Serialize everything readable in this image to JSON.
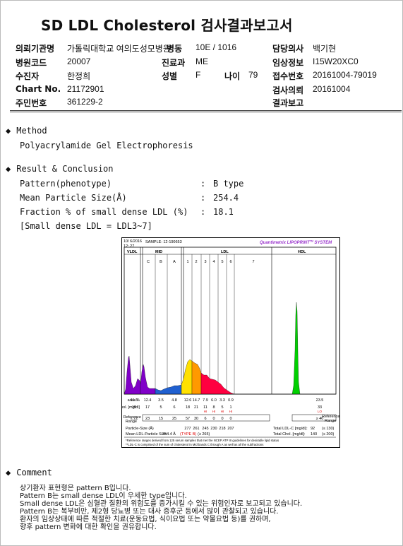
{
  "title": "SD LDL Cholesterol 검사결과보고서",
  "header": {
    "institution_label": "의뢰기관명",
    "institution": "가톨릭대학교 여의도성모병원",
    "ward_label": "병동",
    "ward": "10E / 1016",
    "doctor_label": "담당의사",
    "doctor": "백기현",
    "hospital_code_label": "병원코드",
    "hospital_code": "20007",
    "department_label": "진료과",
    "department": "ME",
    "clinical_label": "임상정보",
    "clinical": "I15W20XC0",
    "patient_label": "수진자",
    "patient": "한정희",
    "sex_label": "성별",
    "sex": "F",
    "age_label": "나이",
    "age": "79",
    "receipt_label": "접수번호",
    "receipt": "20161004-79019",
    "chart_label": "Chart No.",
    "chart_no": "21172901",
    "request_label": "검사의뢰",
    "request_date": "20161004",
    "rrn_label": "주민번호",
    "rrn": "361229-2",
    "report_label": "결과보고",
    "report_date": ""
  },
  "method": {
    "heading": "Method",
    "text": "Polyacrylamide Gel Electrophoresis"
  },
  "result": {
    "heading": "Result & Conclusion",
    "rows": [
      {
        "label": "Pattern(phenotype)",
        "colon": ":",
        "value": "B type"
      },
      {
        "label": "Mean Particle Size(Å)",
        "colon": ":",
        "value": "254.4"
      },
      {
        "label": "Fraction % of small dense LDL (%)",
        "colon": ":",
        "value": "18.1"
      }
    ],
    "note": "[Small dense LDL = LDL3~7]"
  },
  "chart_data": {
    "type": "area",
    "date": "10/ 6/2016",
    "time": "12: 27",
    "sample": "SAMPLE: 12-190653",
    "brand": "Quantimetrix LIPOPRINT",
    "brand_tm": "TM",
    "brand_suffix": " SYSTEM",
    "groups": [
      "VLDL",
      "MID",
      "LDL",
      "HDL"
    ],
    "mid_bands": [
      "C",
      "B",
      "A"
    ],
    "ldl_bands": [
      "1",
      "2",
      "3",
      "4",
      "5",
      "6",
      "7"
    ],
    "bands": [
      "VLDL",
      "C",
      "B",
      "A",
      "1",
      "2",
      "3",
      "4",
      "5",
      "6",
      "7",
      "HDL"
    ],
    "area_label": "area %",
    "area": [
      "11.0",
      "12.4",
      "3.5",
      "4.8",
      "12.6",
      "14.7",
      "7.9",
      "6.0",
      "3.3",
      "0.9",
      "",
      "23.5"
    ],
    "chol_label": "chol. [mg/dl]",
    "chol": [
      "15",
      "17",
      "5",
      "6",
      "18",
      "21",
      "11",
      "8",
      "5",
      "1",
      "",
      "33"
    ],
    "chol_flags": [
      "",
      "",
      "",
      "",
      "",
      "",
      "HI",
      "HI",
      "HI",
      "HI",
      "",
      "LO"
    ],
    "ref_label": "Reference Range",
    "ref_range": [
      "≤ 22",
      "23",
      "15",
      "25",
      "57",
      "30",
      "6",
      "0",
      "0",
      "0",
      "",
      "≥ 40"
    ],
    "particle_label": "Particle-Size (Å)",
    "particle_sizes": [
      "277",
      "261",
      "245",
      "230",
      "218",
      "207"
    ],
    "mean_label": "Mean LDL-Particle Size:",
    "mean_value": "254.4 Å",
    "mean_type": "(TYPE B)",
    "mean_ref": "(≥ 265)",
    "total_ldl_label": "Total LDL-C [mg/dl]:",
    "total_ldl": "92",
    "total_ldl_ref": "(≤ 130)",
    "total_chol_label": "Total Chol. [mg/dl]:",
    "total_chol": "140",
    "total_chol_ref": "(≤ 200)",
    "footnote1": "*Reference ranges derived from 125 serum samples that met the NCEP ATP III guidelines for desirable lipid status",
    "footnote2": "**LDL-C is comprised of the sum of cholesterol in Mid bands C through A as well as all the subfractions",
    "colors": {
      "vldl": "#8000c8",
      "mid": "#2060d0",
      "ldl1": "#ffe000",
      "ldl2": "#ff9900",
      "ldl3plus": "#ff0040",
      "hdl": "#00d000",
      "red_text": "#e00000",
      "brand": "#9933cc"
    }
  },
  "comment": {
    "heading": "Comment",
    "lines": [
      "상기환자 표현형은 pattern B입니다.",
      "Pattern B는 small dense LDL이 우세한 type입니다.",
      "Small dense LDL은 심혈관 질환의 위험도를 증가시킬 수 있는 위험인자로 보고되고 있습니다.",
      "Pattern B는 복부비만, 제2형 당뇨병 또는 대사 증후군 등에서 많이 관찰되고 있습니다.",
      "환자의 임상상태에 따른 적절한 치료(운동요법, 식이요법 또는 약물요법 등)를 권하며,",
      "향후 pattern 변화에 대한 확인을 권유합니다."
    ]
  }
}
